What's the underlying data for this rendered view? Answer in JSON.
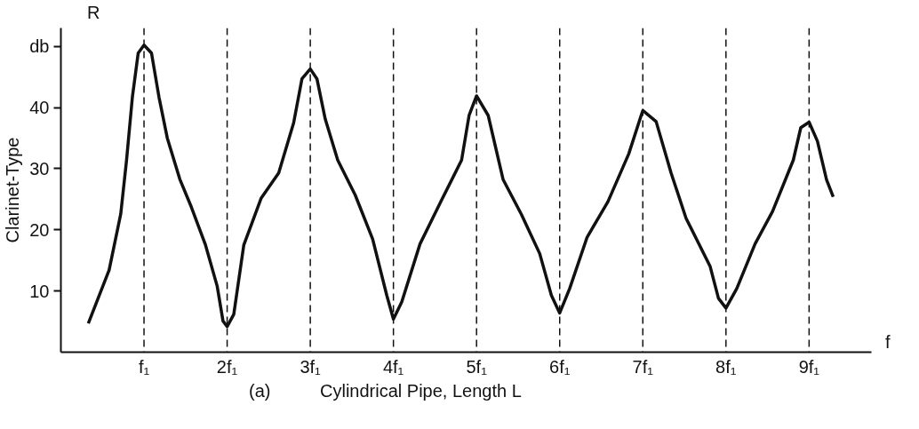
{
  "chart_data": {
    "type": "line",
    "xlabel": "Cylindrical Pipe, Length L",
    "ylabel": "Clarinet-Type",
    "annotations": [
      "R",
      "f",
      "(a)"
    ],
    "x": [
      0.33,
      0.58,
      0.72,
      0.79,
      0.86,
      0.93,
      1.0,
      1.09,
      1.18,
      1.28,
      1.43,
      1.57,
      1.74,
      1.88,
      1.95,
      2.0,
      2.08,
      2.2,
      2.41,
      2.62,
      2.8,
      2.9,
      3.0,
      3.08,
      3.18,
      3.33,
      3.54,
      3.75,
      3.92,
      4.0,
      4.1,
      4.32,
      4.57,
      4.82,
      4.91,
      5.0,
      5.14,
      5.32,
      5.54,
      5.76,
      5.9,
      6.0,
      6.12,
      6.33,
      6.58,
      6.83,
      6.98,
      7.0,
      7.16,
      7.34,
      7.52,
      7.81,
      7.91,
      8.0,
      8.13,
      8.35,
      8.56,
      8.81,
      8.9,
      9.0,
      9.1,
      9.21,
      9.29
    ],
    "series": [
      {
        "color": "#111111",
        "values": [
          4.7,
          13.4,
          22.6,
          31.4,
          41.7,
          48.9,
          50.2,
          48.9,
          41.7,
          35.0,
          28.3,
          23.7,
          17.5,
          10.8,
          5.1,
          4.2,
          6.2,
          17.5,
          25.2,
          29.3,
          37.5,
          44.7,
          46.3,
          44.7,
          38.1,
          31.4,
          25.7,
          18.5,
          9.3,
          5.4,
          8.2,
          17.7,
          24.6,
          31.4,
          38.7,
          41.9,
          38.7,
          28.2,
          22.5,
          16.1,
          9.3,
          6.4,
          10.4,
          18.8,
          24.6,
          32.4,
          38.7,
          39.5,
          37.7,
          29.3,
          21.9,
          14.0,
          8.8,
          7.2,
          10.4,
          17.7,
          23.0,
          31.4,
          36.7,
          37.6,
          34.5,
          28.2,
          25.4
        ]
      }
    ],
    "xlim": [
      0,
      9.75
    ],
    "ylim": [
      0,
      53
    ],
    "xticks": [
      {
        "value": 1,
        "label": "f₁"
      },
      {
        "value": 2,
        "label": "2f₁"
      },
      {
        "value": 3,
        "label": "3f₁"
      },
      {
        "value": 4,
        "label": "4f₁"
      },
      {
        "value": 5,
        "label": "5f₁"
      },
      {
        "value": 6,
        "label": "6f₁"
      },
      {
        "value": 7,
        "label": "7f₁"
      },
      {
        "value": 8,
        "label": "8f₁"
      },
      {
        "value": 9,
        "label": "9f₁"
      }
    ],
    "yticks": [
      10,
      20,
      30,
      40,
      {
        "value": 50,
        "label": "db"
      }
    ],
    "ref_lines": [
      {
        "axis": "x",
        "value": 1,
        "line_style": "dashed"
      },
      {
        "axis": "x",
        "value": 2,
        "line_style": "dashed"
      },
      {
        "axis": "x",
        "value": 3,
        "line_style": "dashed"
      },
      {
        "axis": "x",
        "value": 4,
        "line_style": "dashed"
      },
      {
        "axis": "x",
        "value": 5,
        "line_style": "dashed"
      },
      {
        "axis": "x",
        "value": 6,
        "line_style": "dashed"
      },
      {
        "axis": "x",
        "value": 7,
        "line_style": "dashed"
      },
      {
        "axis": "x",
        "value": 8,
        "line_style": "dashed"
      },
      {
        "axis": "x",
        "value": 9,
        "line_style": "dashed"
      }
    ],
    "grid": false,
    "marker": "none",
    "line_style": "solid"
  }
}
